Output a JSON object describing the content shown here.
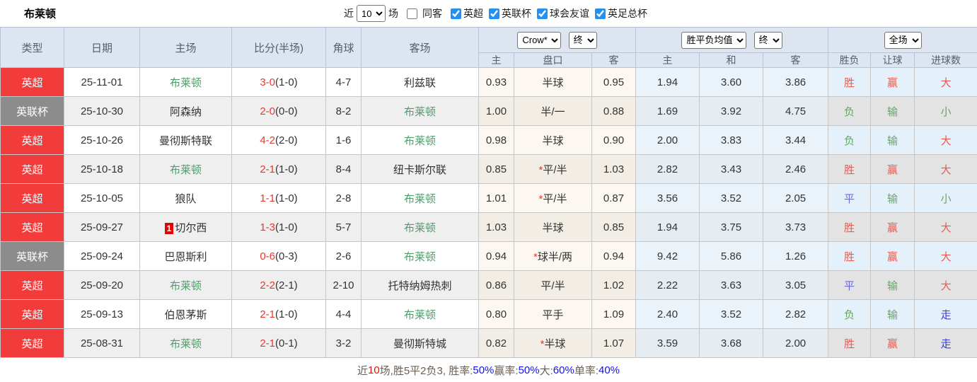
{
  "page": {
    "title": "布莱顿"
  },
  "toolbar": {
    "near_label": "近",
    "count_value": "10",
    "matches_label": "场",
    "same_away_label": "同客",
    "leagues": [
      {
        "label": "英超",
        "checked": true
      },
      {
        "label": "英联杯",
        "checked": true
      },
      {
        "label": "球会友谊",
        "checked": true
      },
      {
        "label": "英足总杯",
        "checked": true
      }
    ]
  },
  "table": {
    "columns": {
      "type": "类型",
      "date": "日期",
      "home": "主场",
      "score": "比分(半场)",
      "corners": "角球",
      "away": "客场"
    },
    "controls": {
      "company": "Crow*",
      "company_state": "终",
      "avg": "胜平负均值",
      "avg_state": "终",
      "scope": "全场"
    },
    "sub_headers": [
      "主",
      "盘口",
      "客",
      "主",
      "和",
      "客",
      "胜负",
      "让球",
      "进球数"
    ],
    "rows": [
      {
        "league": "英超",
        "league_color": "red",
        "date": "25-11-01",
        "home": "布莱顿",
        "home_self": true,
        "card": null,
        "score_main": "3-0",
        "score_half": "(1-0)",
        "corners": "4-7",
        "away": "利兹联",
        "away_self": false,
        "odds_home": "0.93",
        "handicap_star": false,
        "handicap": "半球",
        "odds_away": "0.95",
        "avg_home": "1.94",
        "avg_draw": "3.60",
        "avg_away": "3.86",
        "result": "胜",
        "result_color": "red",
        "spread": "赢",
        "spread_color": "red",
        "goals": "大",
        "goals_color": "red"
      },
      {
        "league": "英联杯",
        "league_color": "gray",
        "date": "25-10-30",
        "home": "阿森纳",
        "home_self": false,
        "card": null,
        "score_main": "2-0",
        "score_half": "(0-0)",
        "corners": "8-2",
        "away": "布莱顿",
        "away_self": true,
        "odds_home": "1.00",
        "handicap_star": false,
        "handicap": "半/一",
        "odds_away": "0.88",
        "avg_home": "1.69",
        "avg_draw": "3.92",
        "avg_away": "4.75",
        "result": "负",
        "result_color": "green",
        "spread": "输",
        "spread_color": "green",
        "goals": "小",
        "goals_color": "green"
      },
      {
        "league": "英超",
        "league_color": "red",
        "date": "25-10-26",
        "home": "曼彻斯特联",
        "home_self": false,
        "card": null,
        "score_main": "4-2",
        "score_half": "(2-0)",
        "corners": "1-6",
        "away": "布莱顿",
        "away_self": true,
        "odds_home": "0.98",
        "handicap_star": false,
        "handicap": "半球",
        "odds_away": "0.90",
        "avg_home": "2.00",
        "avg_draw": "3.83",
        "avg_away": "3.44",
        "result": "负",
        "result_color": "green",
        "spread": "输",
        "spread_color": "green",
        "goals": "大",
        "goals_color": "red"
      },
      {
        "league": "英超",
        "league_color": "red",
        "date": "25-10-18",
        "home": "布莱顿",
        "home_self": true,
        "card": null,
        "score_main": "2-1",
        "score_half": "(1-0)",
        "corners": "8-4",
        "away": "纽卡斯尔联",
        "away_self": false,
        "odds_home": "0.85",
        "handicap_star": true,
        "handicap": "平/半",
        "odds_away": "1.03",
        "avg_home": "2.82",
        "avg_draw": "3.43",
        "avg_away": "2.46",
        "result": "胜",
        "result_color": "red",
        "spread": "赢",
        "spread_color": "red",
        "goals": "大",
        "goals_color": "red"
      },
      {
        "league": "英超",
        "league_color": "red",
        "date": "25-10-05",
        "home": "狼队",
        "home_self": false,
        "card": null,
        "score_main": "1-1",
        "score_half": "(1-0)",
        "corners": "2-8",
        "away": "布莱顿",
        "away_self": true,
        "odds_home": "1.01",
        "handicap_star": true,
        "handicap": "平/半",
        "odds_away": "0.87",
        "avg_home": "3.56",
        "avg_draw": "3.52",
        "avg_away": "2.05",
        "result": "平",
        "result_color": "blue",
        "spread": "输",
        "spread_color": "green",
        "goals": "小",
        "goals_color": "green"
      },
      {
        "league": "英超",
        "league_color": "red",
        "date": "25-09-27",
        "home": "切尔西",
        "home_self": false,
        "card": "1",
        "score_main": "1-3",
        "score_half": "(1-0)",
        "corners": "5-7",
        "away": "布莱顿",
        "away_self": true,
        "odds_home": "1.03",
        "handicap_star": false,
        "handicap": "半球",
        "odds_away": "0.85",
        "avg_home": "1.94",
        "avg_draw": "3.75",
        "avg_away": "3.73",
        "result": "胜",
        "result_color": "red",
        "spread": "赢",
        "spread_color": "red",
        "goals": "大",
        "goals_color": "red"
      },
      {
        "league": "英联杯",
        "league_color": "gray",
        "date": "25-09-24",
        "home": "巴恩斯利",
        "home_self": false,
        "card": null,
        "score_main": "0-6",
        "score_half": "(0-3)",
        "corners": "2-6",
        "away": "布莱顿",
        "away_self": true,
        "odds_home": "0.94",
        "handicap_star": true,
        "handicap": "球半/两",
        "odds_away": "0.94",
        "avg_home": "9.42",
        "avg_draw": "5.86",
        "avg_away": "1.26",
        "result": "胜",
        "result_color": "red",
        "spread": "赢",
        "spread_color": "red",
        "goals": "大",
        "goals_color": "red"
      },
      {
        "league": "英超",
        "league_color": "red",
        "date": "25-09-20",
        "home": "布莱顿",
        "home_self": true,
        "card": null,
        "score_main": "2-2",
        "score_half": "(2-1)",
        "corners": "2-10",
        "away": "托特纳姆热刺",
        "away_self": false,
        "odds_home": "0.86",
        "handicap_star": false,
        "handicap": "平/半",
        "odds_away": "1.02",
        "avg_home": "2.22",
        "avg_draw": "3.63",
        "avg_away": "3.05",
        "result": "平",
        "result_color": "blue",
        "spread": "输",
        "spread_color": "green",
        "goals": "大",
        "goals_color": "red"
      },
      {
        "league": "英超",
        "league_color": "red",
        "date": "25-09-13",
        "home": "伯恩茅斯",
        "home_self": false,
        "card": null,
        "score_main": "2-1",
        "score_half": "(1-0)",
        "corners": "4-4",
        "away": "布莱顿",
        "away_self": true,
        "odds_home": "0.80",
        "handicap_star": false,
        "handicap": "平手",
        "odds_away": "1.09",
        "avg_home": "2.40",
        "avg_draw": "3.52",
        "avg_away": "2.82",
        "result": "负",
        "result_color": "green",
        "spread": "输",
        "spread_color": "green",
        "goals": "走",
        "goals_color": "strongblue"
      },
      {
        "league": "英超",
        "league_color": "red",
        "date": "25-08-31",
        "home": "布莱顿",
        "home_self": true,
        "card": null,
        "score_main": "2-1",
        "score_half": "(0-1)",
        "corners": "3-2",
        "away": "曼彻斯特城",
        "away_self": false,
        "odds_home": "0.82",
        "handicap_star": true,
        "handicap": "半球",
        "odds_away": "1.07",
        "avg_home": "3.59",
        "avg_draw": "3.68",
        "avg_away": "2.00",
        "result": "胜",
        "result_color": "red",
        "spread": "赢",
        "spread_color": "red",
        "goals": "走",
        "goals_color": "strongblue"
      }
    ]
  },
  "footer": {
    "segments": [
      {
        "text": "近",
        "color": "label"
      },
      {
        "text": "10",
        "color": "red"
      },
      {
        "text": "场,胜5平2负3, 胜率:",
        "color": "label"
      },
      {
        "text": "50%",
        "color": "blue"
      },
      {
        "text": " 赢率:",
        "color": "label"
      },
      {
        "text": "50%",
        "color": "blue"
      },
      {
        "text": " 大:",
        "color": "label"
      },
      {
        "text": "60%",
        "color": "blue"
      },
      {
        "text": " 单率:",
        "color": "label"
      },
      {
        "text": "40%",
        "color": "blue"
      }
    ]
  },
  "colors": {
    "league_red": "#f23c3c",
    "league_gray": "#8c8c8c",
    "self_team_green": "#4f9d6b",
    "score_red": "#e6382e",
    "header_bg": "#dce5f0",
    "checkbox_blue": "#2490ef"
  }
}
